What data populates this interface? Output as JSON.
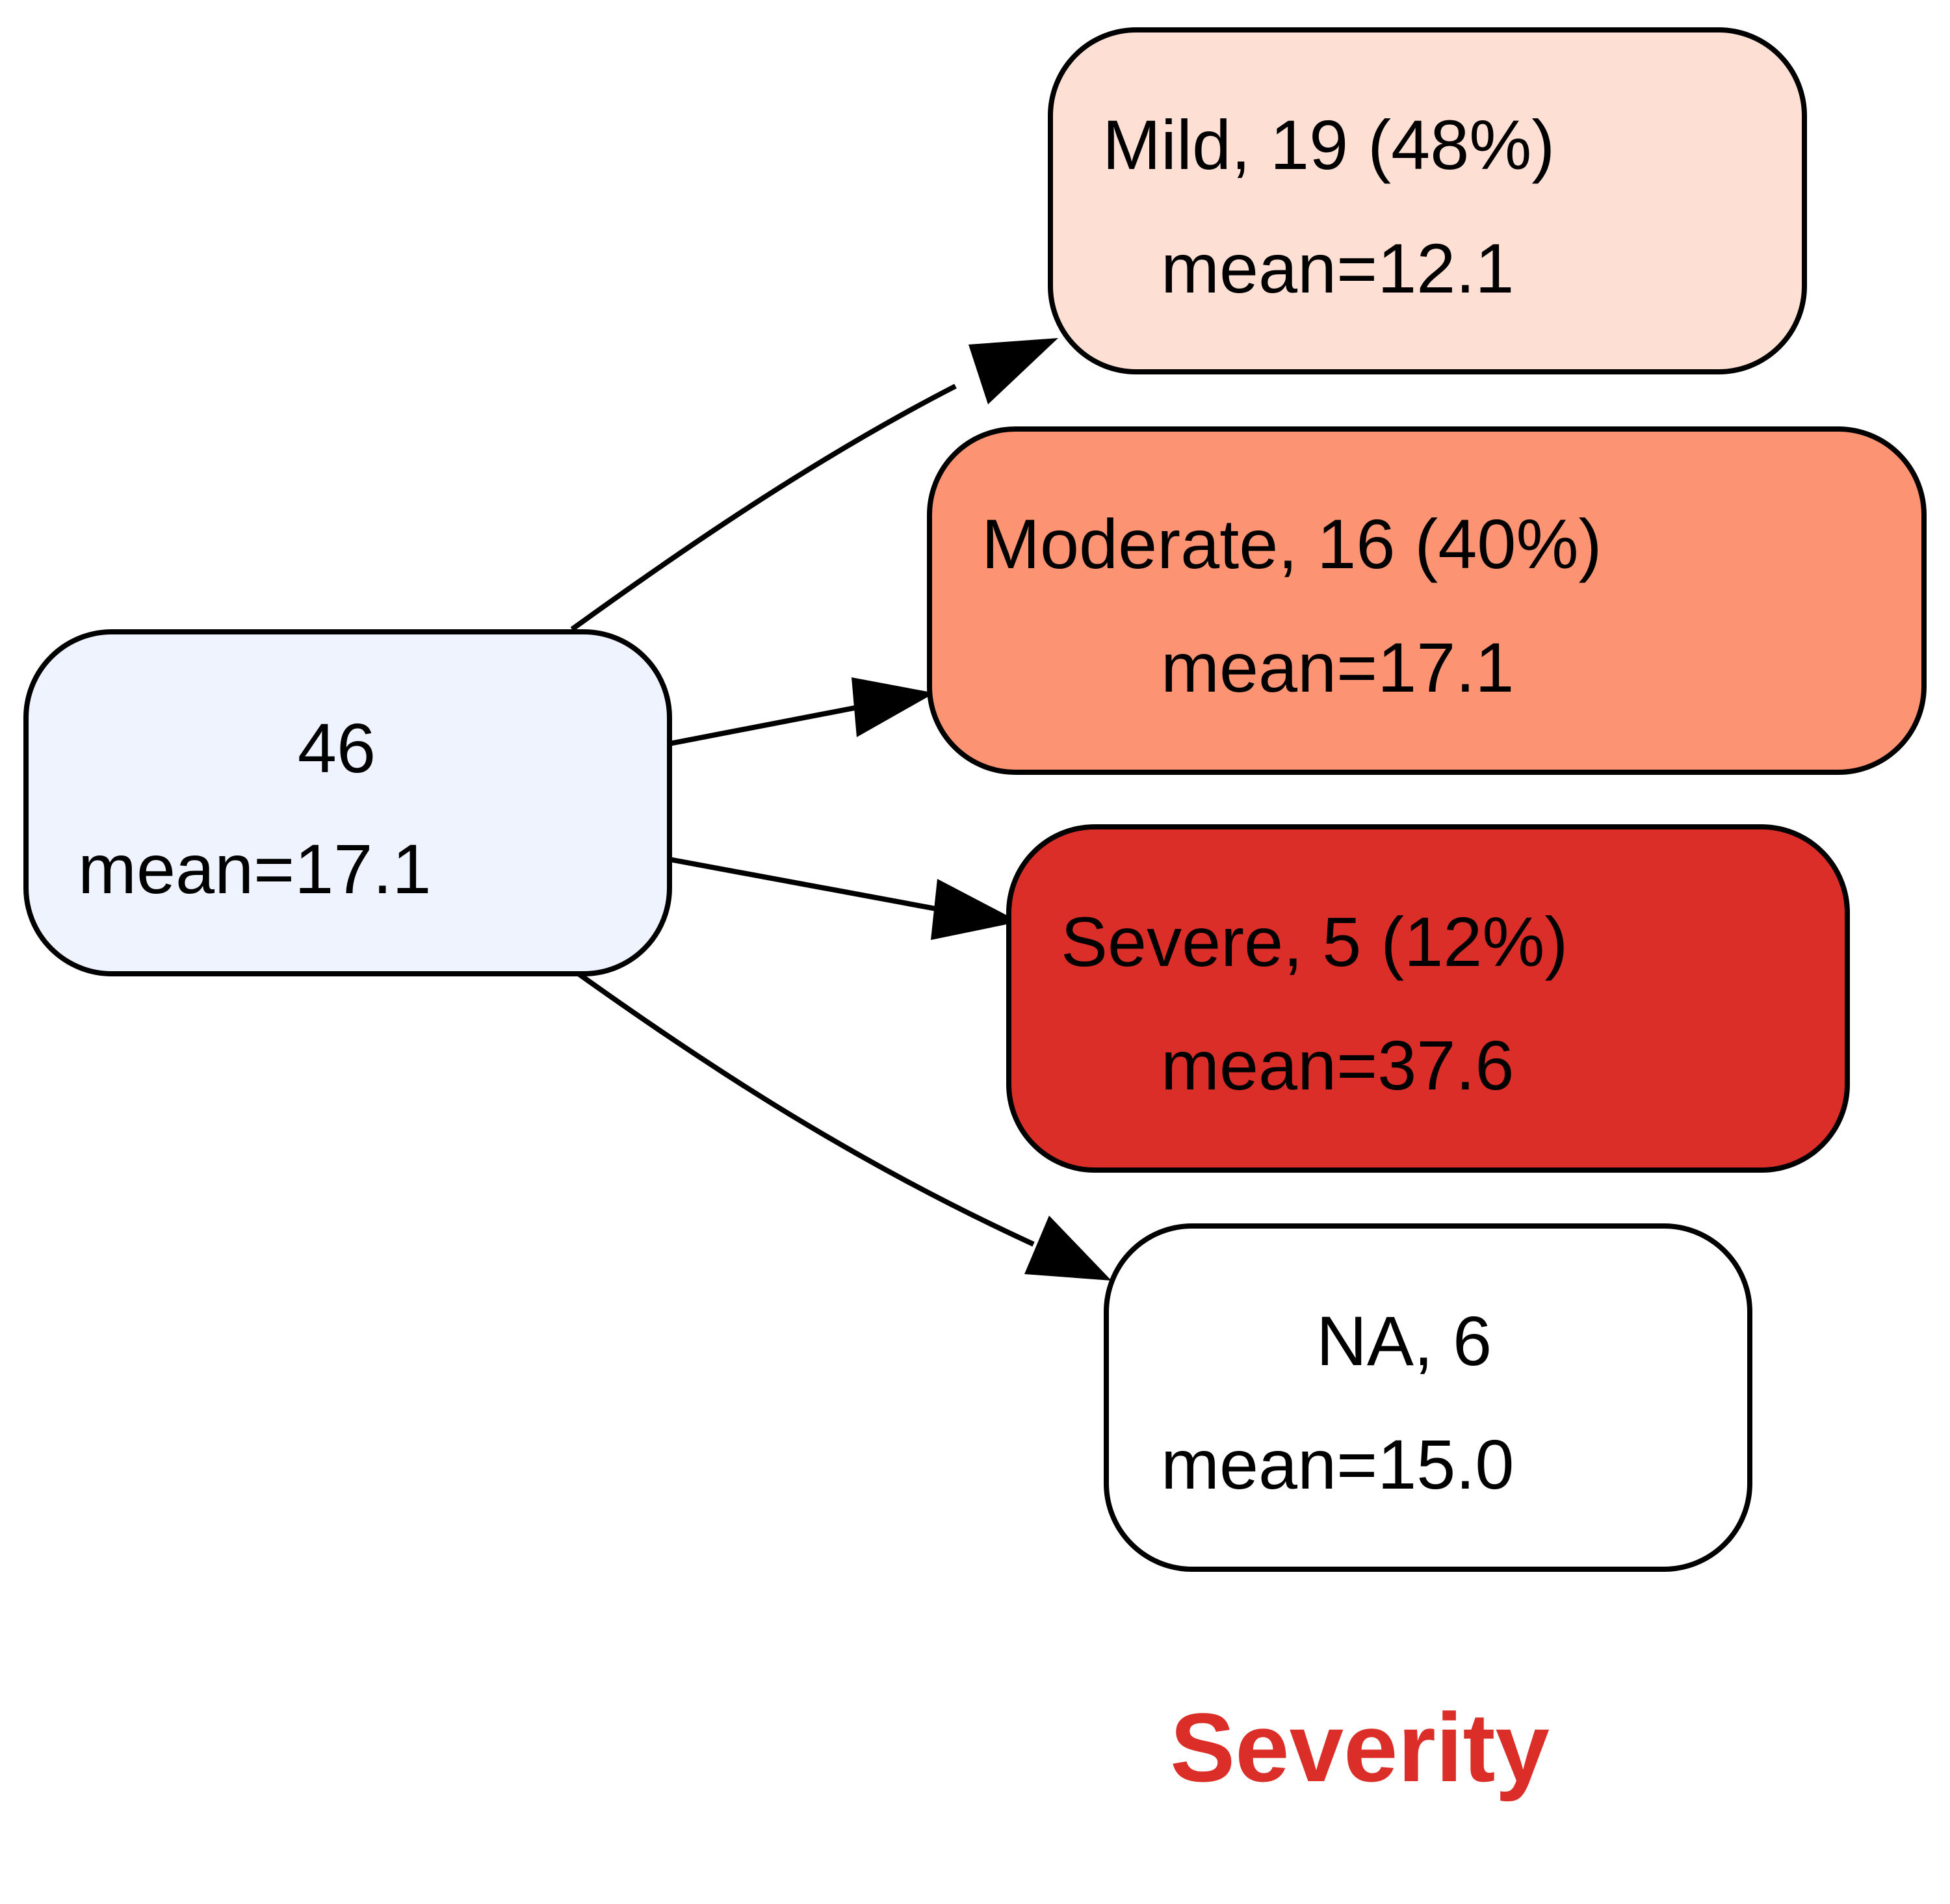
{
  "root": {
    "label": "46",
    "mean": "mean=17.1",
    "fill": "#eef3fe"
  },
  "children": [
    {
      "label": "Mild, 19 (48%)",
      "mean": "mean=12.1",
      "fill": "#fde0d3"
    },
    {
      "label": "Moderate, 16 (40%)",
      "mean": "mean=17.1",
      "fill": "#fc9474"
    },
    {
      "label": "Severe, 5 (12%)",
      "mean": "mean=37.6",
      "fill": "#dc2e28"
    },
    {
      "label": "NA, 6",
      "mean": "mean=15.0",
      "fill": "#ffffff"
    }
  ],
  "variable_title": {
    "text": "Severity",
    "color": "#dc2e28"
  }
}
